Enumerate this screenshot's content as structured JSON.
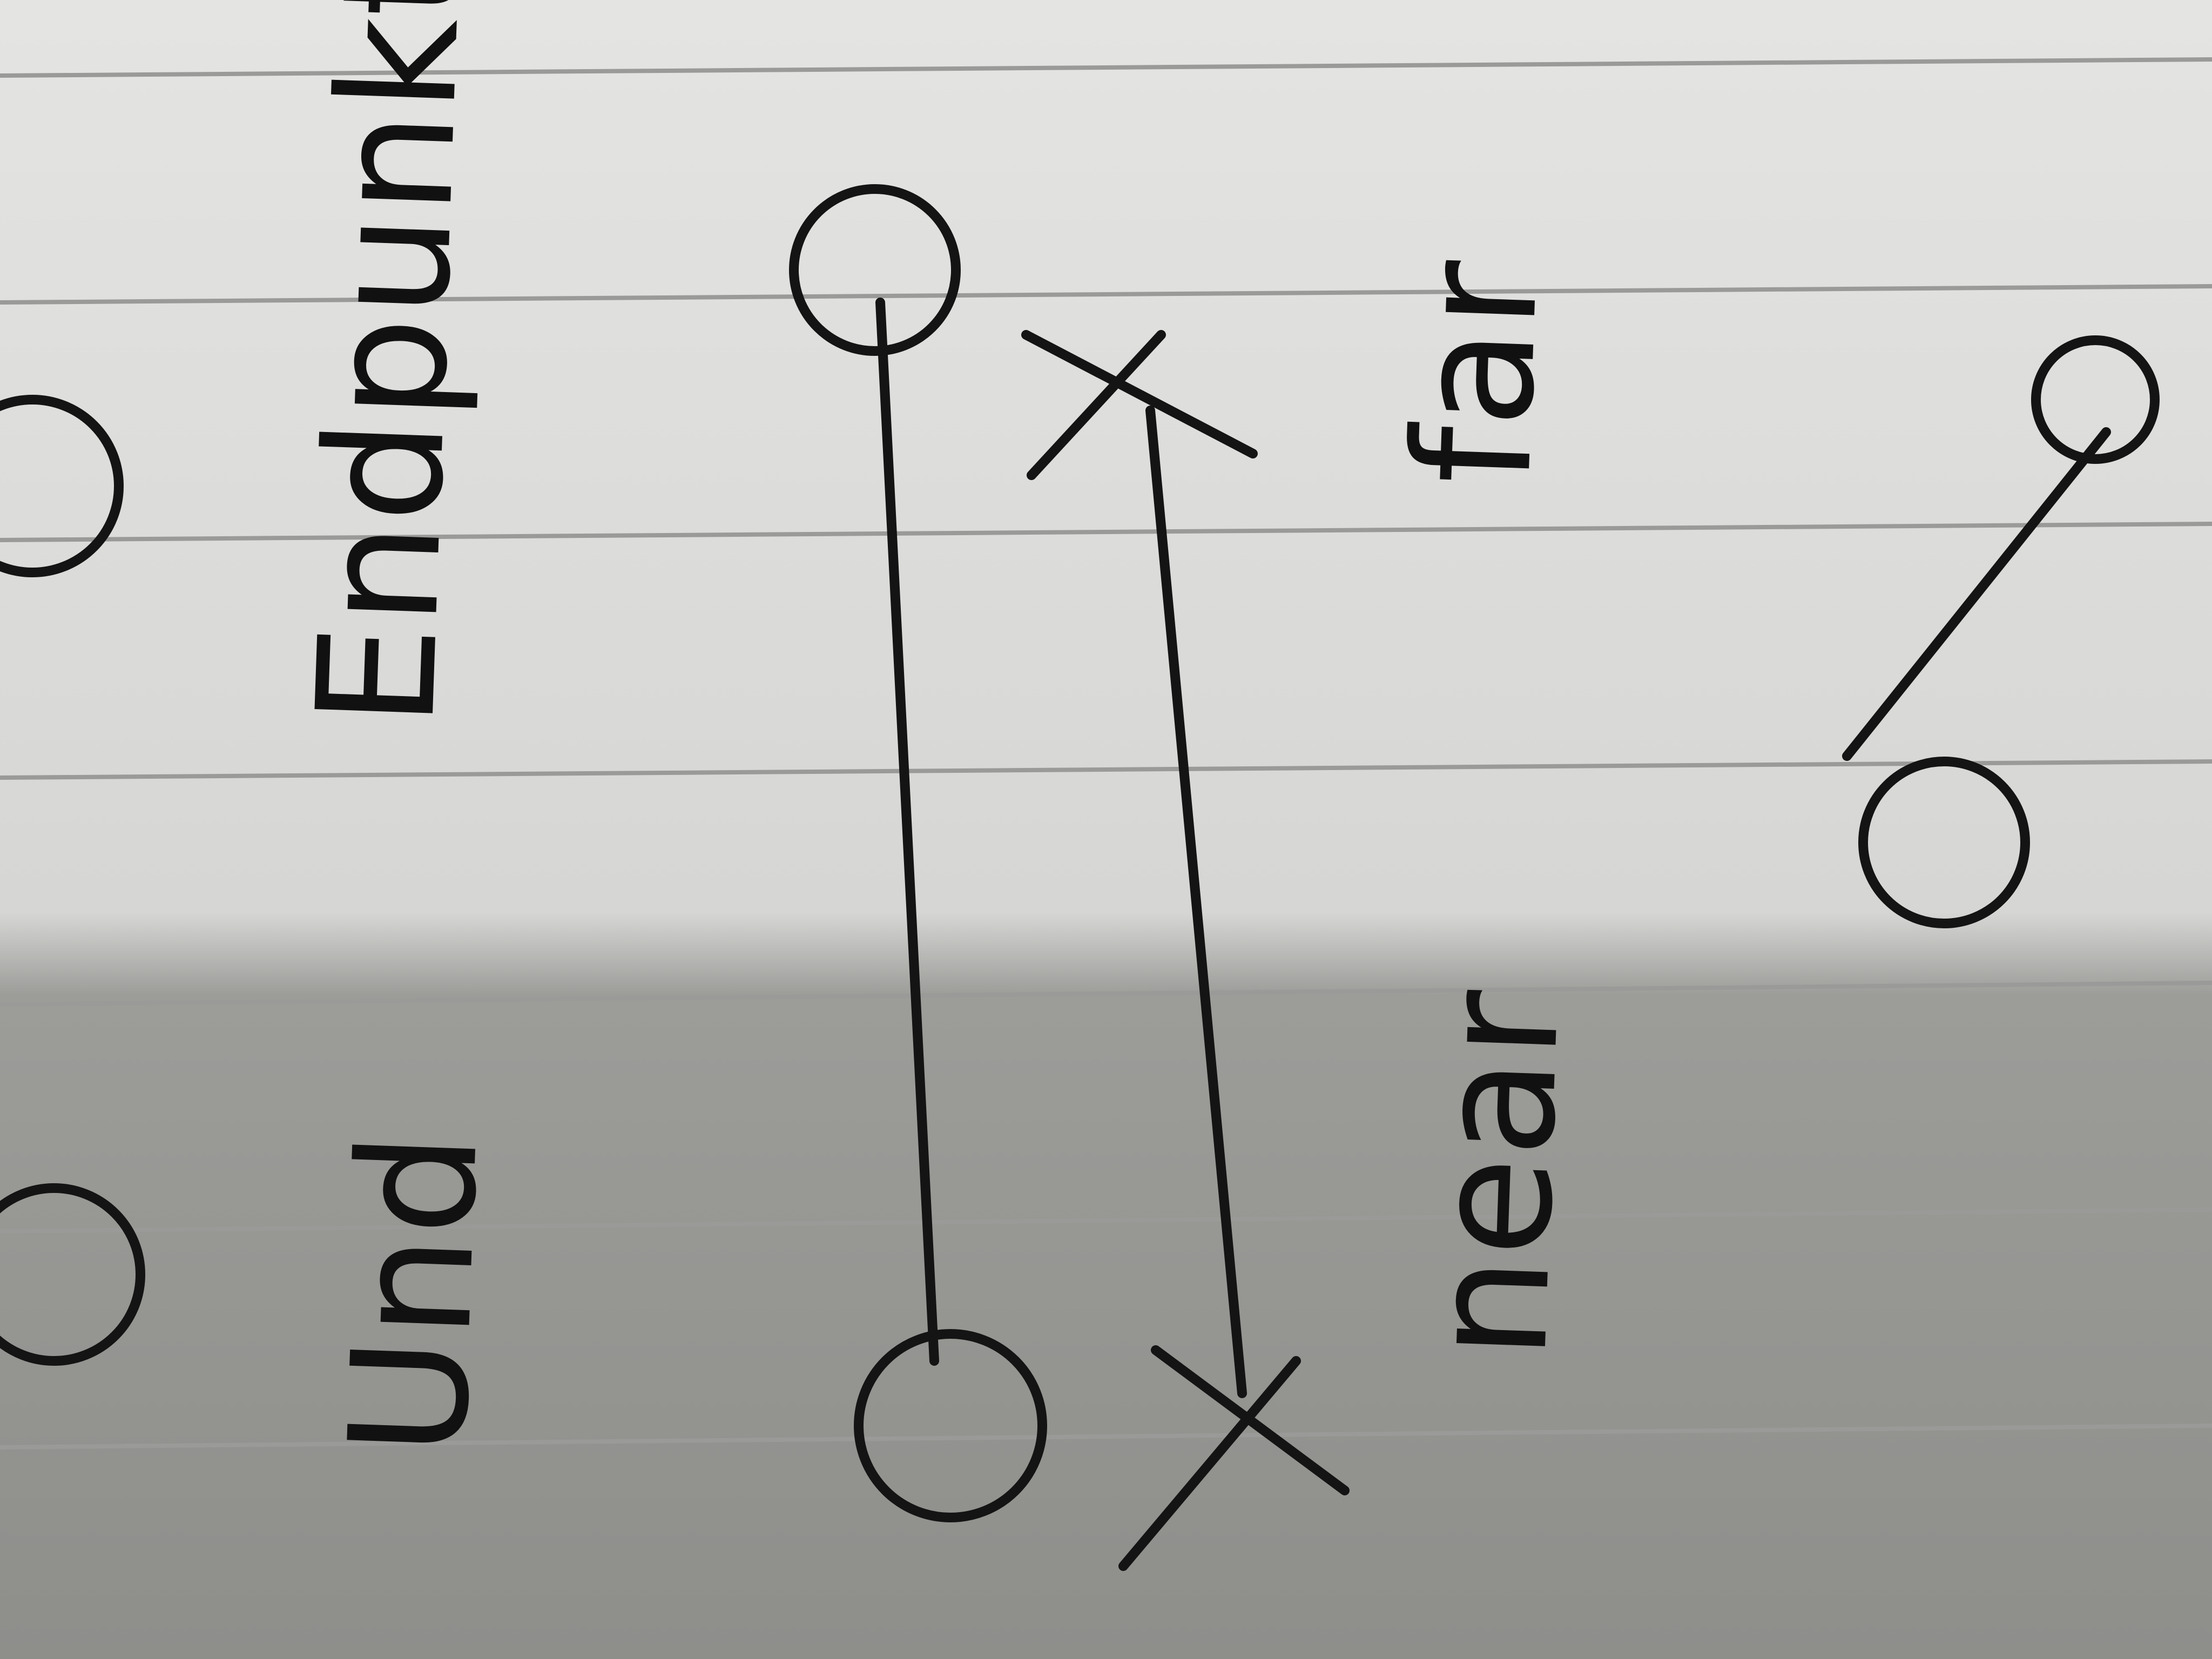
{
  "labels": {
    "left_top": "Und",
    "left_bottom": "Endpunkt",
    "right_top": "near",
    "right_bottom": "far"
  }
}
